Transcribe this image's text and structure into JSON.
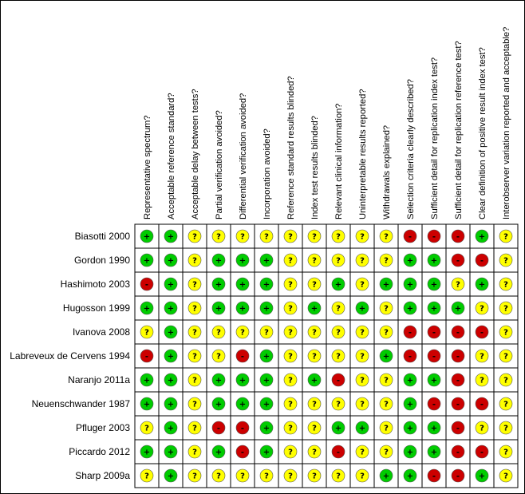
{
  "chart_data": {
    "type": "table",
    "columns": [
      "Representative spectrum?",
      "Acceptable reference standard?",
      "Acceptable delay between tests?",
      "Partial verification avoided?",
      "Differential verification avoided?",
      "Incorporation avoided?",
      "Reference standard results blinded?",
      "Index test results blinded?",
      "Relevant clinical information?",
      "Uninterpretable results reported?",
      "Withdrawals explained?",
      "Selection criteria clearly described?",
      "Sufficient detail for replication index test?",
      "Sufficient detail for replication reference test?",
      "Clear definition of positive result index test?",
      "Interobserver variation reported and acceptable?"
    ],
    "rows": [
      {
        "study": "Biasotti 2000",
        "cells": [
          "+",
          "+",
          "?",
          "?",
          "?",
          "?",
          "?",
          "?",
          "?",
          "?",
          "?",
          "-",
          "-",
          "-",
          "+",
          "?"
        ]
      },
      {
        "study": "Gordon 1990",
        "cells": [
          "+",
          "+",
          "?",
          "+",
          "+",
          "+",
          "?",
          "?",
          "?",
          "?",
          "?",
          "+",
          "+",
          "-",
          "-",
          "?"
        ]
      },
      {
        "study": "Hashimoto 2003",
        "cells": [
          "-",
          "+",
          "?",
          "+",
          "+",
          "+",
          "?",
          "?",
          "+",
          "?",
          "+",
          "+",
          "+",
          "?",
          "+",
          "?"
        ]
      },
      {
        "study": "Hugosson 1999",
        "cells": [
          "+",
          "+",
          "?",
          "+",
          "+",
          "+",
          "?",
          "+",
          "?",
          "+",
          "?",
          "+",
          "+",
          "+",
          "?",
          "?"
        ]
      },
      {
        "study": "Ivanova 2008",
        "cells": [
          "?",
          "+",
          "?",
          "?",
          "?",
          "?",
          "?",
          "?",
          "?",
          "?",
          "?",
          "-",
          "-",
          "-",
          "-",
          "?"
        ]
      },
      {
        "study": "Labreveux de Cervens 1994",
        "cells": [
          "-",
          "+",
          "?",
          "?",
          "-",
          "+",
          "?",
          "?",
          "?",
          "?",
          "+",
          "-",
          "-",
          "-",
          "?",
          "?"
        ]
      },
      {
        "study": "Naranjo 2011a",
        "cells": [
          "+",
          "+",
          "?",
          "+",
          "+",
          "+",
          "?",
          "+",
          "-",
          "?",
          "?",
          "+",
          "+",
          "-",
          "?",
          "?"
        ]
      },
      {
        "study": "Neuenschwander 1987",
        "cells": [
          "+",
          "+",
          "?",
          "+",
          "+",
          "+",
          "?",
          "?",
          "?",
          "?",
          "?",
          "+",
          "-",
          "-",
          "-",
          "?"
        ]
      },
      {
        "study": "Pfluger 2003",
        "cells": [
          "?",
          "+",
          "?",
          "-",
          "-",
          "+",
          "?",
          "?",
          "+",
          "+",
          "?",
          "+",
          "+",
          "-",
          "?",
          "?"
        ]
      },
      {
        "study": "Piccardo 2012",
        "cells": [
          "+",
          "+",
          "?",
          "+",
          "-",
          "+",
          "?",
          "?",
          "-",
          "?",
          "?",
          "+",
          "+",
          "-",
          "-",
          "?"
        ]
      },
      {
        "study": "Sharp 2009a",
        "cells": [
          "?",
          "+",
          "?",
          "?",
          "?",
          "?",
          "?",
          "?",
          "?",
          "?",
          "+",
          "+",
          "-",
          "-",
          "+",
          "?"
        ]
      }
    ],
    "legend": {
      "+": {
        "color": "#00cc00"
      },
      "-": {
        "color": "#cc0000"
      },
      "?": {
        "color": "#ffff00"
      }
    },
    "grid": true
  }
}
